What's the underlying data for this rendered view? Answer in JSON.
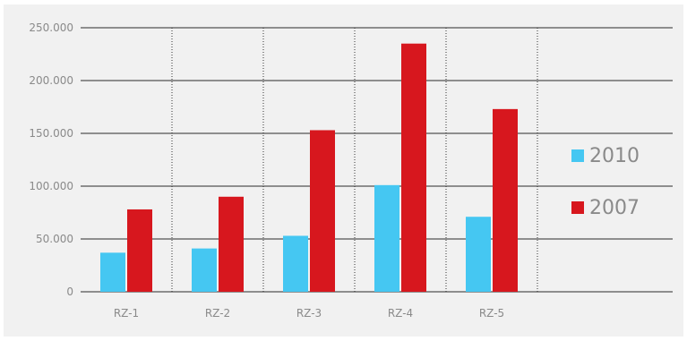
{
  "chart_data": {
    "type": "bar",
    "title": "",
    "xlabel": "",
    "ylabel": "",
    "categories": [
      "RZ-1",
      "RZ-2",
      "RZ-3",
      "RZ-4",
      "RZ-5"
    ],
    "series": [
      {
        "name": "2010",
        "color": "#45c7f2",
        "values": [
          37000,
          41000,
          53000,
          101000,
          71000
        ]
      },
      {
        "name": "2007",
        "color": "#d7171e",
        "values": [
          78000,
          90000,
          153000,
          235000,
          173000
        ]
      }
    ],
    "ylim": [
      0,
      250000
    ],
    "yticks": [
      0,
      50000,
      100000,
      150000,
      200000,
      250000
    ],
    "ytick_labels": [
      "0",
      "50.000",
      "100.000",
      "150.000",
      "200.000",
      "250.000"
    ],
    "grid": {
      "horizontal": true,
      "vertical_dotted": true
    },
    "legend_position": "right",
    "background": "#f1f1f1"
  }
}
